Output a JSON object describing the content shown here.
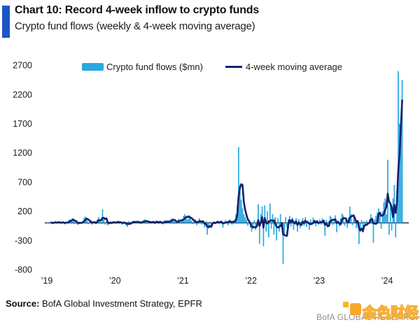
{
  "header": {
    "title": "Chart 10: Record 4-week inflow to crypto funds",
    "subtitle": "Crypto fund flows (weekly & 4-week moving average)"
  },
  "legend": {
    "bars": {
      "label": "Crypto fund flows ($mn)",
      "color": "#29a8e1"
    },
    "line": {
      "label": "4-week moving average",
      "color": "#13216b"
    }
  },
  "footer": {
    "source_label": "Source:",
    "source_text": " BofA Global Investment Strategy, EPFR",
    "brand": "BofA GLOBAL RESEARCH",
    "watermark": "金色财经"
  },
  "colors": {
    "accent": "#1e55c4",
    "bar": "#29a8e1",
    "ma_line": "#13216b",
    "zero_line": "#404040",
    "tick_text": "#1a1a1a",
    "brand_text": "#8d8d8d",
    "watermark_orange": "#f7a61f"
  },
  "chart_data": {
    "type": "bar",
    "title": "Crypto fund flows (weekly & 4-week moving average)",
    "x_unit": "week",
    "x_start": "2019-01",
    "x_end": "2024-03",
    "weeks_per_year": 52,
    "xticks": [
      "’19",
      "’20",
      "’21",
      "’22",
      "’23",
      "’24"
    ],
    "yticks": [
      2700,
      2200,
      1700,
      1200,
      700,
      200,
      -300,
      -800
    ],
    "ylim": [
      -800,
      2700
    ],
    "grid": false,
    "legend_position": "top-inside",
    "series": [
      {
        "name": "Crypto fund flows ($mn)",
        "type": "bar",
        "color": "#29a8e1",
        "values": [
          10,
          -15,
          20,
          5,
          -20,
          15,
          30,
          -10,
          5,
          25,
          -15,
          10,
          20,
          -25,
          15,
          5,
          40,
          60,
          30,
          80,
          50,
          -20,
          10,
          -35,
          20,
          15,
          -10,
          30,
          90,
          110,
          60,
          -20,
          15,
          45,
          -30,
          10,
          25,
          -15,
          60,
          100,
          40,
          -20,
          230,
          90,
          -30,
          20,
          -40,
          15,
          30,
          -20,
          10,
          25,
          -10,
          20,
          35,
          -15,
          10,
          -30,
          25,
          15,
          -45,
          -70,
          30,
          20,
          -15,
          10,
          40,
          25,
          -10,
          15,
          30,
          -20,
          10,
          45,
          60,
          25,
          -15,
          20,
          35,
          -10,
          15,
          25,
          -20,
          40,
          30,
          -15,
          20,
          10,
          -25,
          35,
          50,
          20,
          -10,
          30,
          60,
          80,
          45,
          20,
          -15,
          30,
          70,
          50,
          25,
          40,
          120,
          150,
          90,
          60,
          130,
          100,
          40,
          -20,
          30,
          60,
          -40,
          20,
          80,
          40,
          -30,
          10,
          -80,
          30,
          -200,
          -60,
          20,
          -40,
          10,
          30,
          -20,
          15,
          40,
          -10,
          20,
          30,
          -80,
          20,
          50,
          30,
          -40,
          60,
          40,
          -30,
          20,
          60,
          150,
          300,
          1300,
          650,
          400,
          250,
          150,
          100,
          50,
          -50,
          30,
          -80,
          -150,
          -100,
          50,
          -120,
          -60,
          320,
          -360,
          150,
          280,
          -400,
          300,
          -150,
          200,
          -250,
          330,
          -100,
          150,
          -200,
          100,
          -300,
          80,
          -150,
          150,
          -80,
          -700,
          -200,
          100,
          -80,
          60,
          120,
          -60,
          90,
          -120,
          40,
          80,
          -150,
          60,
          -90,
          30,
          80,
          -50,
          100,
          -70,
          40,
          -120,
          60,
          -40,
          90,
          30,
          -60,
          50,
          -30,
          60,
          -30,
          80,
          40,
          -220,
          50,
          -80,
          30,
          120,
          90,
          -40,
          60,
          130,
          -160,
          40,
          -60,
          80,
          160,
          130,
          -50,
          70,
          -80,
          90,
          280,
          150,
          -40,
          120,
          60,
          -90,
          40,
          -360,
          -120,
          50,
          -150,
          30,
          -60,
          40,
          -30,
          60,
          150,
          90,
          -340,
          60,
          120,
          180,
          250,
          150,
          -100,
          200,
          350,
          420,
          150,
          1080,
          -200,
          300,
          -130,
          420,
          650,
          -250,
          550,
          2600,
          1700,
          1650,
          2450
        ]
      },
      {
        "name": "4-week moving average",
        "type": "line",
        "color": "#13216b",
        "derived_from": "trailing 4-week mean of the weekly bar values"
      }
    ]
  }
}
